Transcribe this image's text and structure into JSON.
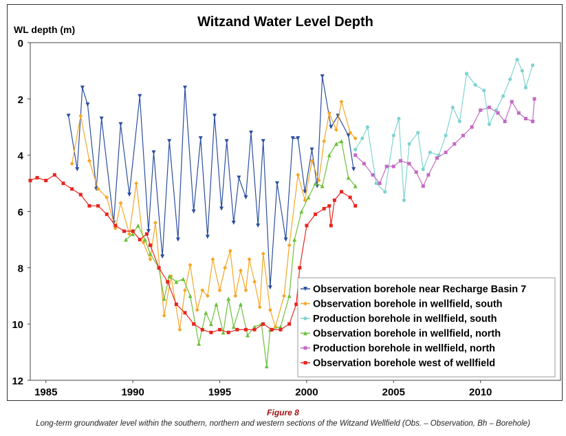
{
  "chart_data": {
    "type": "line",
    "title": "Witzand Water Level Depth",
    "ylabel": "WL depth (m)",
    "xlabel": "",
    "xlim": [
      1984.1,
      2014.6
    ],
    "ylim": [
      0,
      12
    ],
    "y_inverted": true,
    "x_ticks": [
      "1985",
      "1990",
      "1995",
      "2000",
      "2005",
      "2010"
    ],
    "y_ticks": [
      "0",
      "2",
      "4",
      "6",
      "8",
      "10",
      "12"
    ],
    "legend_position": "bottom-right",
    "series": [
      {
        "name": "Observation borehole near Recharge Basin 7",
        "color": "#2b4ea0",
        "marker": "triangle-down",
        "points": [
          [
            1986.3,
            2.6
          ],
          [
            1986.8,
            4.5
          ],
          [
            1987.1,
            1.6
          ],
          [
            1987.4,
            2.2
          ],
          [
            1987.9,
            5.2
          ],
          [
            1988.2,
            2.7
          ],
          [
            1988.9,
            6.4
          ],
          [
            1989.3,
            2.9
          ],
          [
            1989.8,
            5.4
          ],
          [
            1990.4,
            1.9
          ],
          [
            1990.9,
            6.7
          ],
          [
            1991.2,
            3.9
          ],
          [
            1991.7,
            7.6
          ],
          [
            1992.1,
            3.5
          ],
          [
            1992.6,
            7.0
          ],
          [
            1993.0,
            1.6
          ],
          [
            1993.5,
            6.0
          ],
          [
            1993.9,
            3.4
          ],
          [
            1994.3,
            6.9
          ],
          [
            1994.7,
            2.6
          ],
          [
            1995.1,
            5.9
          ],
          [
            1995.4,
            3.5
          ],
          [
            1995.8,
            6.4
          ],
          [
            1996.1,
            4.8
          ],
          [
            1996.5,
            5.5
          ],
          [
            1996.8,
            3.2
          ],
          [
            1997.2,
            6.5
          ],
          [
            1997.5,
            3.5
          ],
          [
            1997.9,
            8.7
          ],
          [
            1998.3,
            5.0
          ],
          [
            1998.8,
            7.0
          ],
          [
            1999.2,
            3.4
          ],
          [
            1999.5,
            3.4
          ],
          [
            1999.9,
            5.3
          ],
          [
            2000.3,
            3.8
          ],
          [
            2000.6,
            5.1
          ],
          [
            2000.9,
            1.2
          ],
          [
            2001.4,
            3.0
          ],
          [
            2001.8,
            2.6
          ],
          [
            2002.4,
            3.3
          ],
          [
            2002.7,
            4.5
          ]
        ]
      },
      {
        "name": "Observation borehole in wellfield, south",
        "color": "#f5a623",
        "marker": "diamond",
        "points": [
          [
            1986.5,
            4.3
          ],
          [
            1987.0,
            2.6
          ],
          [
            1987.5,
            4.2
          ],
          [
            1988.0,
            5.2
          ],
          [
            1988.5,
            5.5
          ],
          [
            1989.0,
            6.6
          ],
          [
            1989.3,
            5.7
          ],
          [
            1989.8,
            6.8
          ],
          [
            1990.2,
            5.0
          ],
          [
            1990.6,
            7.1
          ],
          [
            1991.0,
            7.7
          ],
          [
            1991.3,
            6.4
          ],
          [
            1991.8,
            9.7
          ],
          [
            1992.2,
            8.3
          ],
          [
            1992.7,
            10.2
          ],
          [
            1993.0,
            8.8
          ],
          [
            1993.3,
            7.9
          ],
          [
            1993.7,
            9.5
          ],
          [
            1994.0,
            8.8
          ],
          [
            1994.3,
            9.0
          ],
          [
            1994.6,
            7.7
          ],
          [
            1995.0,
            8.8
          ],
          [
            1995.3,
            8.0
          ],
          [
            1995.6,
            7.4
          ],
          [
            1995.9,
            9.0
          ],
          [
            1996.2,
            8.1
          ],
          [
            1996.5,
            8.8
          ],
          [
            1996.7,
            7.7
          ],
          [
            1997.0,
            8.5
          ],
          [
            1997.3,
            9.4
          ],
          [
            1997.5,
            7.5
          ],
          [
            1997.9,
            9.5
          ],
          [
            1998.2,
            10.1
          ],
          [
            1998.7,
            9.0
          ],
          [
            1999.0,
            7.2
          ],
          [
            1999.5,
            4.7
          ],
          [
            1999.9,
            5.6
          ],
          [
            2000.3,
            4.2
          ],
          [
            2000.7,
            4.9
          ],
          [
            2001.0,
            3.5
          ],
          [
            2001.3,
            2.5
          ],
          [
            2001.7,
            3.1
          ],
          [
            2002.0,
            2.1
          ],
          [
            2002.5,
            3.2
          ],
          [
            2002.8,
            3.4
          ]
        ]
      },
      {
        "name": "Production borehole in wellfield, south",
        "color": "#7fd3d0",
        "marker": "circle",
        "points": [
          [
            2002.8,
            3.8
          ],
          [
            2003.2,
            3.4
          ],
          [
            2003.5,
            3.0
          ],
          [
            2004.0,
            5.0
          ],
          [
            2004.5,
            5.3
          ],
          [
            2005.0,
            3.3
          ],
          [
            2005.3,
            2.7
          ],
          [
            2005.6,
            5.6
          ],
          [
            2005.9,
            3.6
          ],
          [
            2006.4,
            3.2
          ],
          [
            2006.7,
            4.5
          ],
          [
            2007.1,
            3.9
          ],
          [
            2007.6,
            4.0
          ],
          [
            2008.0,
            3.3
          ],
          [
            2008.4,
            2.3
          ],
          [
            2008.8,
            2.8
          ],
          [
            2009.2,
            1.1
          ],
          [
            2009.7,
            1.5
          ],
          [
            2010.2,
            1.7
          ],
          [
            2010.5,
            2.9
          ],
          [
            2010.9,
            2.4
          ],
          [
            2011.3,
            1.9
          ],
          [
            2011.7,
            1.3
          ],
          [
            2012.1,
            0.6
          ],
          [
            2012.4,
            1.0
          ],
          [
            2012.6,
            1.6
          ],
          [
            2013.0,
            0.8
          ]
        ]
      },
      {
        "name": "Observation borehole in wellfield, north",
        "color": "#6cbf3a",
        "marker": "triangle-up",
        "points": [
          [
            1989.6,
            7.0
          ],
          [
            1990.0,
            6.8
          ],
          [
            1990.3,
            6.5
          ],
          [
            1990.7,
            7.0
          ],
          [
            1991.0,
            7.5
          ],
          [
            1991.5,
            8.0
          ],
          [
            1991.8,
            9.1
          ],
          [
            1992.1,
            8.3
          ],
          [
            1992.5,
            8.5
          ],
          [
            1992.9,
            8.4
          ],
          [
            1993.3,
            9.0
          ],
          [
            1993.8,
            10.7
          ],
          [
            1994.2,
            9.6
          ],
          [
            1994.5,
            10.0
          ],
          [
            1994.8,
            9.3
          ],
          [
            1995.2,
            10.3
          ],
          [
            1995.5,
            9.1
          ],
          [
            1995.8,
            10.1
          ],
          [
            1996.2,
            9.3
          ],
          [
            1996.6,
            10.4
          ],
          [
            1997.0,
            10.1
          ],
          [
            1997.4,
            10.0
          ],
          [
            1997.7,
            11.5
          ],
          [
            1997.9,
            10.2
          ],
          [
            1998.5,
            10.1
          ],
          [
            1999.0,
            9.0
          ],
          [
            1999.3,
            7.0
          ],
          [
            1999.7,
            6.0
          ],
          [
            2000.1,
            5.5
          ],
          [
            2000.5,
            5.0
          ],
          [
            2000.9,
            5.1
          ],
          [
            2001.3,
            4.0
          ],
          [
            2001.7,
            3.6
          ],
          [
            2002.0,
            3.5
          ],
          [
            2002.4,
            4.8
          ],
          [
            2002.8,
            5.1
          ]
        ]
      },
      {
        "name": "Production borehole in wellfield, north",
        "color": "#c46ac4",
        "marker": "square",
        "points": [
          [
            2002.8,
            4.0
          ],
          [
            2003.3,
            4.3
          ],
          [
            2003.8,
            4.7
          ],
          [
            2004.2,
            5.0
          ],
          [
            2004.6,
            4.4
          ],
          [
            2005.0,
            4.4
          ],
          [
            2005.4,
            4.2
          ],
          [
            2005.9,
            4.3
          ],
          [
            2006.3,
            4.6
          ],
          [
            2006.7,
            5.1
          ],
          [
            2007.0,
            4.7
          ],
          [
            2007.5,
            4.1
          ],
          [
            2008.0,
            3.9
          ],
          [
            2008.5,
            3.6
          ],
          [
            2009.0,
            3.3
          ],
          [
            2009.5,
            3.0
          ],
          [
            2010.0,
            2.4
          ],
          [
            2010.5,
            2.3
          ],
          [
            2011.0,
            2.5
          ],
          [
            2011.4,
            2.8
          ],
          [
            2011.8,
            2.1
          ],
          [
            2012.2,
            2.5
          ],
          [
            2012.6,
            2.7
          ],
          [
            2013.0,
            2.8
          ],
          [
            2013.1,
            2.0
          ]
        ]
      },
      {
        "name": "Observation borehole west of wellfield",
        "color": "#e8251f",
        "marker": "square",
        "points": [
          [
            1984.1,
            4.9
          ],
          [
            1984.5,
            4.8
          ],
          [
            1985.0,
            4.9
          ],
          [
            1985.5,
            4.7
          ],
          [
            1986.0,
            5.0
          ],
          [
            1986.5,
            5.2
          ],
          [
            1987.0,
            5.4
          ],
          [
            1987.5,
            5.8
          ],
          [
            1988.0,
            5.8
          ],
          [
            1988.5,
            6.1
          ],
          [
            1989.0,
            6.5
          ],
          [
            1989.5,
            6.7
          ],
          [
            1990.0,
            6.7
          ],
          [
            1990.4,
            7.0
          ],
          [
            1990.8,
            6.8
          ],
          [
            1991.0,
            7.2
          ],
          [
            1991.5,
            8.0
          ],
          [
            1992.0,
            8.5
          ],
          [
            1992.5,
            9.3
          ],
          [
            1993.0,
            9.6
          ],
          [
            1993.5,
            10.0
          ],
          [
            1994.0,
            10.2
          ],
          [
            1994.5,
            10.3
          ],
          [
            1995.0,
            10.2
          ],
          [
            1995.5,
            10.3
          ],
          [
            1996.0,
            10.2
          ],
          [
            1996.5,
            10.2
          ],
          [
            1997.0,
            10.2
          ],
          [
            1997.5,
            10.0
          ],
          [
            1998.0,
            10.2
          ],
          [
            1998.5,
            10.2
          ],
          [
            1999.0,
            10.0
          ],
          [
            1999.4,
            9.3
          ],
          [
            1999.6,
            8.0
          ],
          [
            2000.0,
            6.5
          ],
          [
            2000.5,
            6.1
          ],
          [
            2001.0,
            5.9
          ],
          [
            2001.3,
            5.8
          ],
          [
            2001.4,
            6.5
          ],
          [
            2001.6,
            5.6
          ],
          [
            2002.0,
            5.3
          ],
          [
            2002.5,
            5.5
          ],
          [
            2002.8,
            5.8
          ]
        ]
      }
    ]
  },
  "figure_label": "Figure 8",
  "caption": "Long-term groundwater level within the southern, northern and western sections of the Witzand Wellfield (Obs. – Observation, Bh – Borehole)"
}
